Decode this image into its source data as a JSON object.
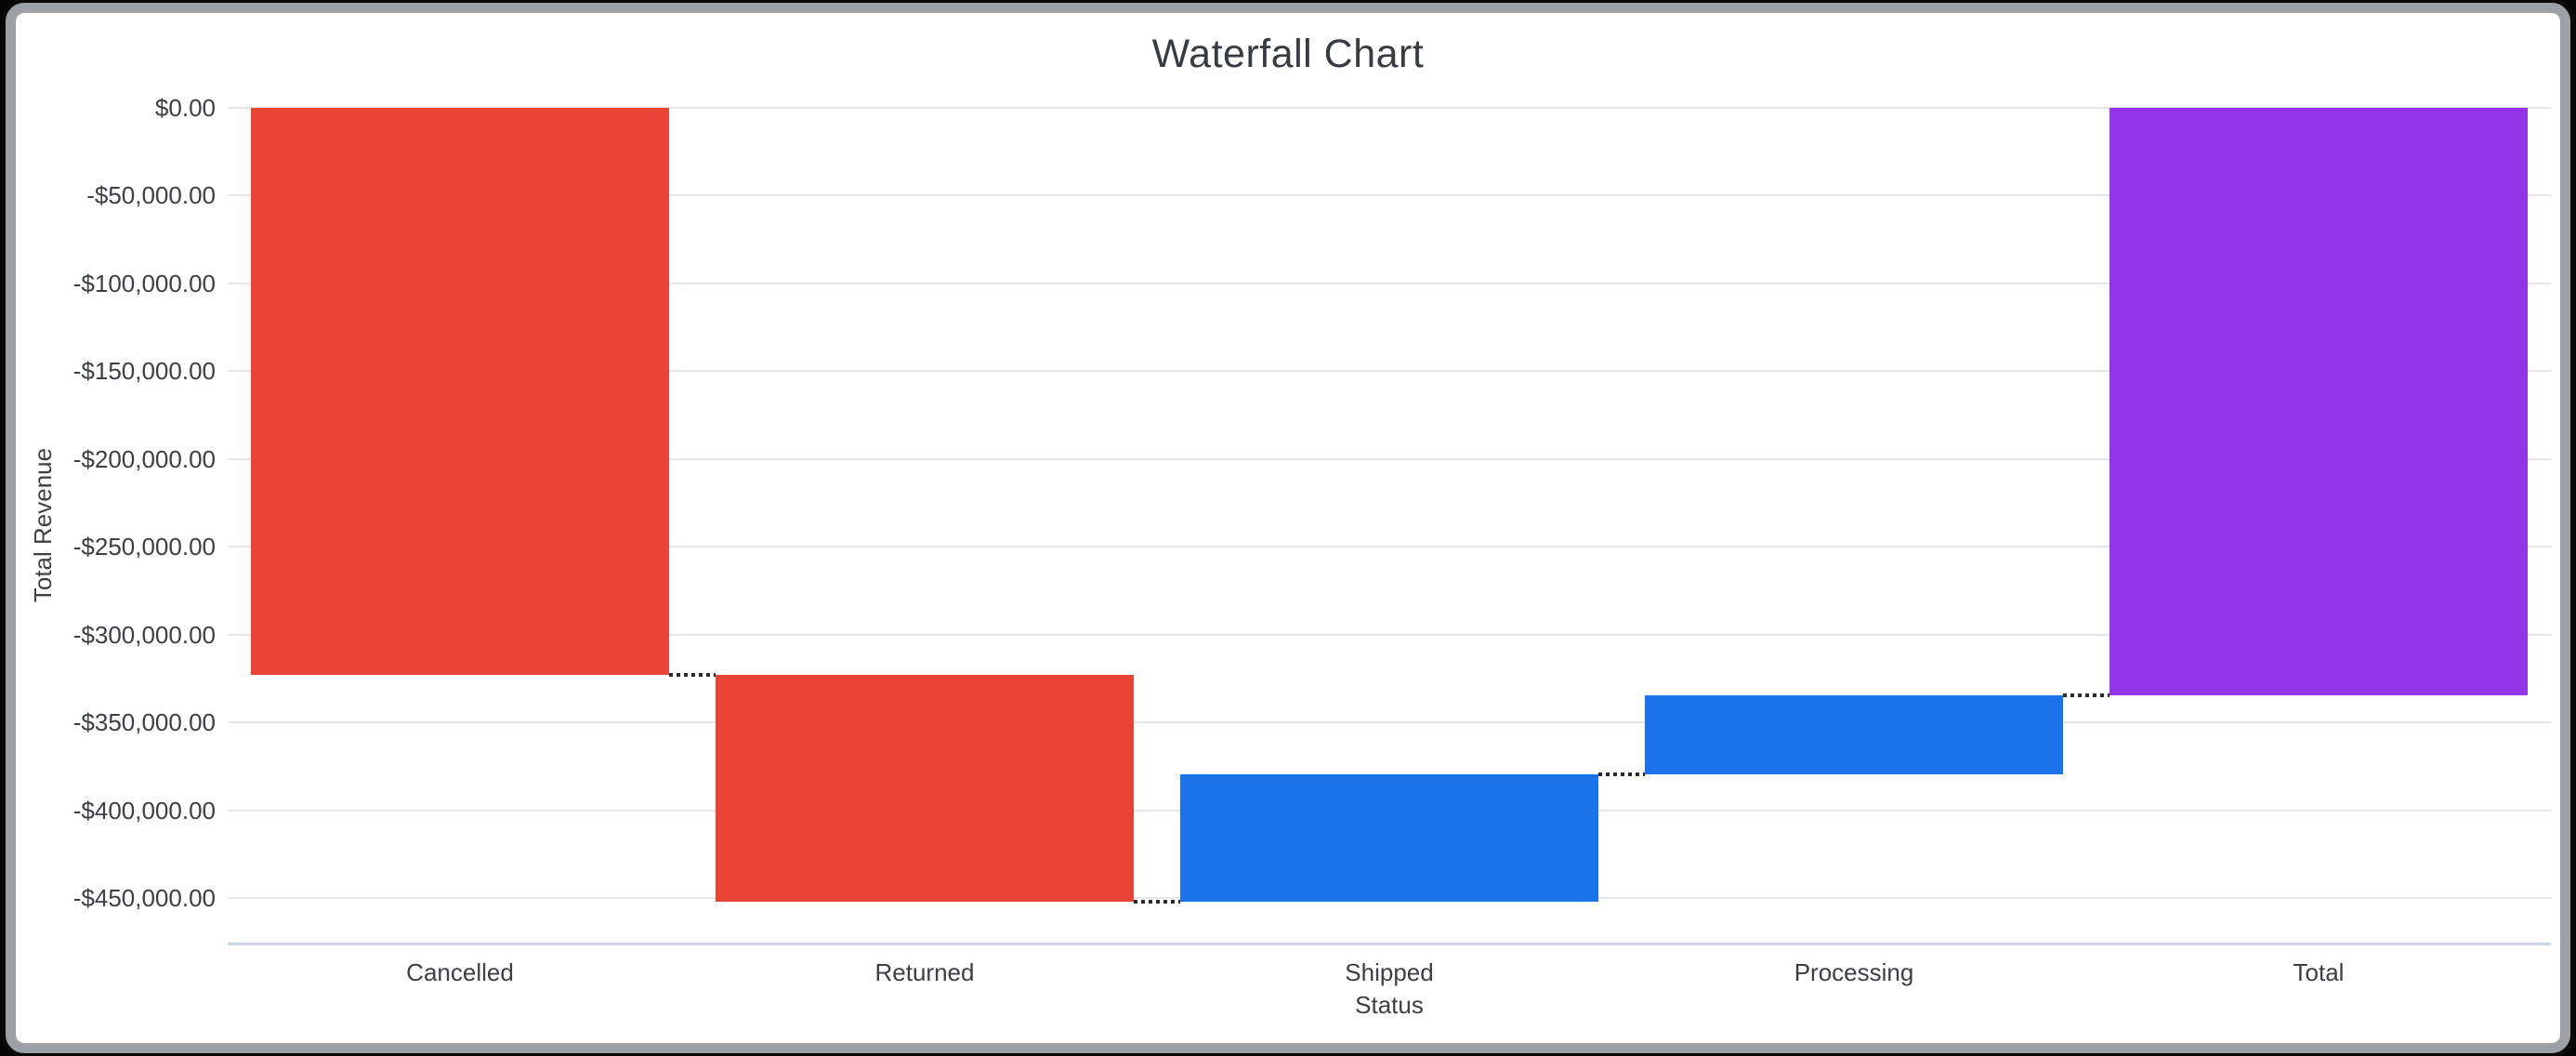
{
  "window": {
    "frame_color": "#9da1a6",
    "background": "#ffffff"
  },
  "chart_data": {
    "type": "bar",
    "variant": "waterfall",
    "title": "Waterfall Chart",
    "xlabel": "Status",
    "ylabel": "Total Revenue",
    "categories": [
      "Cancelled",
      "Returned",
      "Shipped",
      "Processing",
      "Total"
    ],
    "series": [
      {
        "name": "Cancelled",
        "start": 0,
        "end": -323000,
        "delta": -323000,
        "role": "decrease"
      },
      {
        "name": "Returned",
        "start": -323000,
        "end": -452100,
        "delta": -129100,
        "role": "decrease"
      },
      {
        "name": "Shipped",
        "start": -452100,
        "end": -379400,
        "delta": 72700,
        "role": "increase"
      },
      {
        "name": "Processing",
        "start": -379400,
        "end": -334500,
        "delta": 44900,
        "role": "increase"
      },
      {
        "name": "Total",
        "start": 0,
        "end": -334500,
        "delta": -334500,
        "role": "total"
      }
    ],
    "y_ticks": [
      {
        "value": 0,
        "label": "$0.00"
      },
      {
        "value": -50000,
        "label": "-$50,000.00"
      },
      {
        "value": -100000,
        "label": "-$100,000.00"
      },
      {
        "value": -150000,
        "label": "-$150,000.00"
      },
      {
        "value": -200000,
        "label": "-$200,000.00"
      },
      {
        "value": -250000,
        "label": "-$250,000.00"
      },
      {
        "value": -300000,
        "label": "-$300,000.00"
      },
      {
        "value": -350000,
        "label": "-$350,000.00"
      },
      {
        "value": -400000,
        "label": "-$400,000.00"
      },
      {
        "value": -450000,
        "label": "-$450,000.00"
      }
    ],
    "ylim": [
      -475900,
      0
    ],
    "grid": true,
    "legend": "none",
    "connectors": "dotted",
    "colors": {
      "decrease": "#E94335",
      "increase": "#1A73E8",
      "total": "#9334E6",
      "gridline": "#E6E6E6",
      "baseline": "#C9D3EA",
      "connector": "#2B2B2B",
      "text": "#3C4043"
    }
  }
}
